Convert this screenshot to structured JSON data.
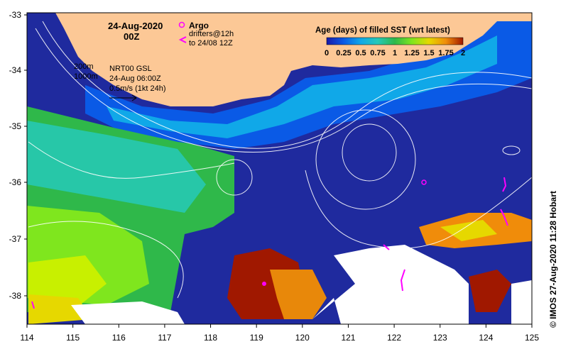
{
  "header": {
    "date": "24-Aug-2020",
    "time": "00Z"
  },
  "legend_argo": {
    "title": "Argo",
    "drifters_line1": "drifters@12h",
    "drifters_line2": "to 24/08 12Z",
    "argo_color": "#ff00ff",
    "drifter_color": "#ff00ff"
  },
  "isobaths": {
    "label_200": "200m",
    "label_1000": "1000m"
  },
  "current_info": {
    "line1": "NRT00 GSL",
    "line2": "24-Aug 06:00Z",
    "line3": "0.5m/s (1kt 24h)"
  },
  "colorbar": {
    "title": "Age (days) of filled SST (wrt latest)",
    "ticks": [
      "0",
      "0.25",
      "0.5",
      "0.75",
      "1",
      "1.25",
      "1.5",
      "1.75",
      "2"
    ],
    "colors": [
      "#1a1aa8",
      "#0a5ae6",
      "#10a8e8",
      "#26c9b8",
      "#2fb84a",
      "#7fe61e",
      "#e6d800",
      "#f08c0a",
      "#a01800"
    ]
  },
  "axes": {
    "x_ticks": [
      "114",
      "115",
      "116",
      "117",
      "118",
      "119",
      "120",
      "121",
      "122",
      "123",
      "124",
      "125"
    ],
    "y_ticks": [
      "-33",
      "-34",
      "-35",
      "-36",
      "-37",
      "-38"
    ]
  },
  "land_color": "#fcc896",
  "no_data_color": "#ffffff",
  "credit": "© IMOS 27-Aug-2020 11:28 Hobart"
}
